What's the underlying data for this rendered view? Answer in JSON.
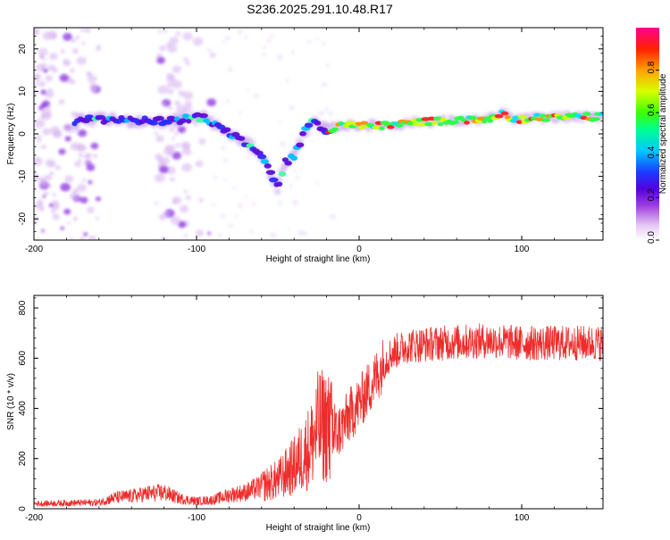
{
  "title": "S236.2025.291.10.48.R17",
  "chart_data": [
    {
      "type": "heatmap",
      "xlabel": "Height of straight line (km)",
      "ylabel": "Frequency (Hz)",
      "xlim": [
        -200,
        150
      ],
      "ylim": [
        -25,
        25
      ],
      "xticks": [
        -200,
        -100,
        0,
        100
      ],
      "yticks": [
        -20,
        -10,
        0,
        10,
        20
      ],
      "colorbar": {
        "label": "Normalized spectral amplitude",
        "range": [
          0,
          1
        ],
        "ticks": [
          "0.0",
          "0.2",
          "0.4",
          "0.6",
          "0.8"
        ]
      },
      "ridge": {
        "x": [
          -175,
          -160,
          -140,
          -120,
          -105,
          -95,
          -88,
          -80,
          -70,
          -62,
          -56,
          -50,
          -46,
          -40,
          -35,
          -30,
          -25,
          -20,
          -10,
          0,
          20,
          40,
          60,
          80,
          90,
          95,
          100,
          120,
          150
        ],
        "y": [
          3,
          3.5,
          3,
          3,
          3.5,
          4,
          2,
          0,
          -2,
          -4,
          -8,
          -13,
          -7,
          -5,
          -1,
          3,
          2,
          1,
          2,
          2,
          2,
          3,
          3,
          3.5,
          5,
          3,
          3.5,
          4,
          4
        ]
      }
    },
    {
      "type": "line",
      "xlabel": "Height of straight line (km)",
      "ylabel": "SNR (10 * v/v)",
      "xlim": [
        -200,
        150
      ],
      "ylim": [
        0,
        850
      ],
      "xticks": [
        -200,
        -100,
        0,
        100
      ],
      "yticks": [
        0,
        200,
        400,
        600,
        800
      ],
      "series_color": "#ee2c2c",
      "envelope": {
        "x": [
          -200,
          -160,
          -150,
          -140,
          -130,
          -120,
          -110,
          -100,
          -90,
          -80,
          -70,
          -60,
          -50,
          -40,
          -30,
          -25,
          -20,
          -15,
          -10,
          -5,
          0,
          5,
          10,
          15,
          20,
          30,
          50,
          80,
          100,
          150
        ],
        "y": [
          20,
          25,
          45,
          50,
          60,
          65,
          40,
          30,
          35,
          55,
          65,
          90,
          115,
          170,
          250,
          330,
          330,
          290,
          330,
          380,
          420,
          470,
          520,
          580,
          620,
          650,
          660,
          670,
          660,
          660
        ]
      }
    }
  ]
}
